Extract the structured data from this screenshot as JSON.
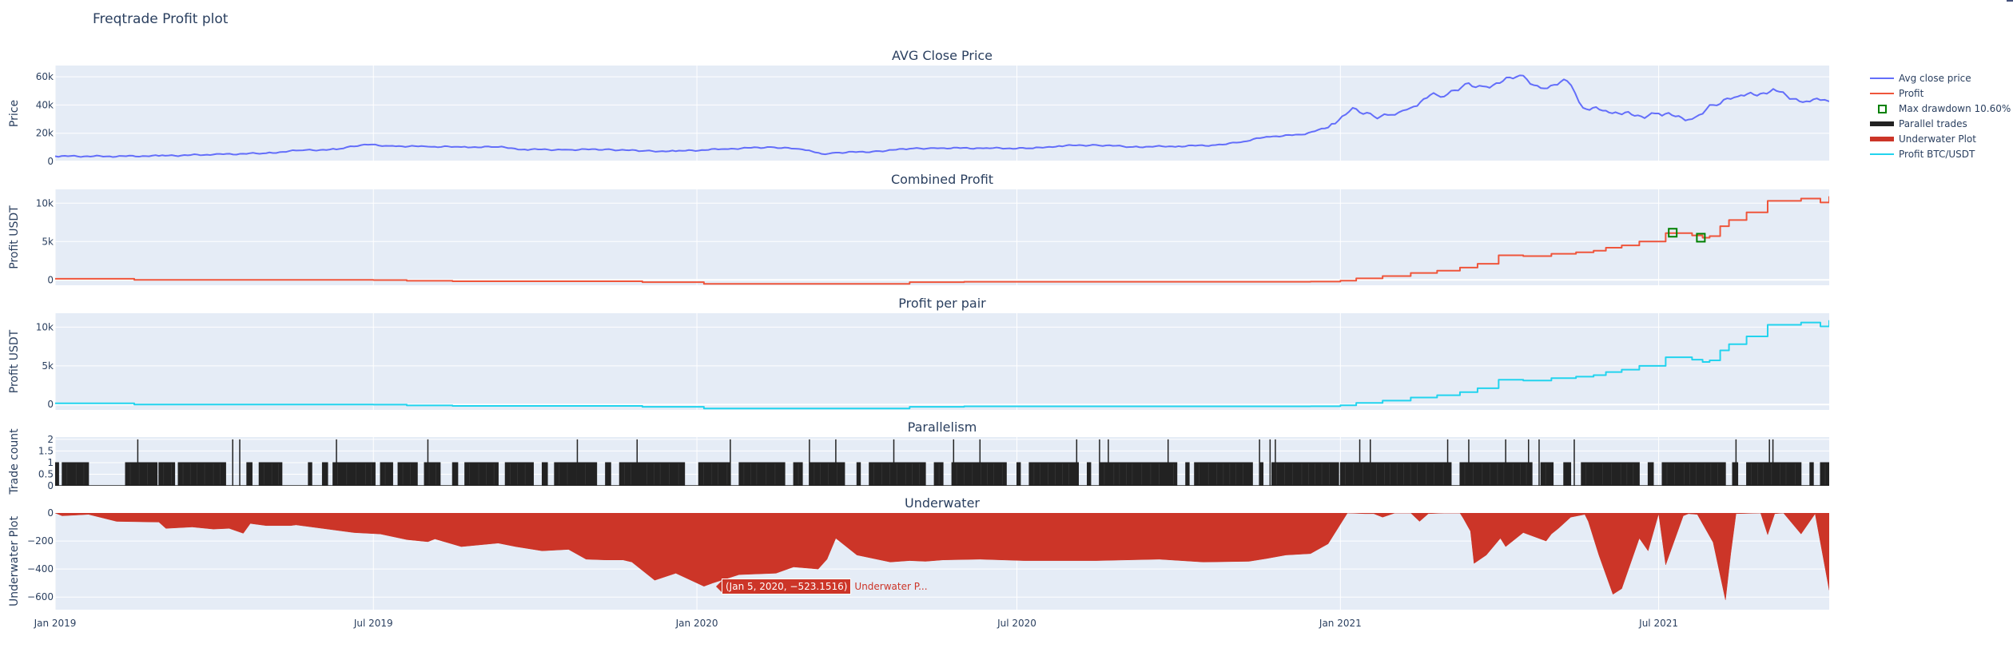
{
  "title": "Freqtrade Profit plot",
  "modebar": {
    "icons": [
      "camera-icon",
      "zoom-icon",
      "pan-icon",
      "box-select-icon",
      "lasso-icon",
      "zoom-in-icon",
      "zoom-out-icon",
      "autoscale-icon",
      "reset-axes-icon",
      "plotly-logo-icon"
    ]
  },
  "legend": {
    "items": [
      {
        "label": "Avg close price",
        "type": "line",
        "color": "#636efa"
      },
      {
        "label": "Profit",
        "type": "line",
        "color": "#ef553b"
      },
      {
        "label": "Max drawdown 10.60%",
        "type": "marker",
        "color": "#008000"
      },
      {
        "label": "Parallel trades",
        "type": "thick",
        "color": "#222222"
      },
      {
        "label": "Underwater Plot",
        "type": "thick",
        "color": "#cc3528"
      },
      {
        "label": "Profit BTC/USDT",
        "type": "line",
        "color": "#22d3ee"
      }
    ]
  },
  "tooltip": {
    "value": "(Jan 5, 2020, −523.1516)",
    "series": "Underwater P..."
  },
  "colors": {
    "plot_bg": "#e5ecf6",
    "grid": "#ffffff",
    "text": "#2a3f5f"
  },
  "chart_data": [
    {
      "type": "line",
      "title": "AVG Close Price",
      "ylabel": "Price",
      "xlabel": "",
      "ylim": [
        0,
        68000
      ],
      "yticks": [
        {
          "v": 0,
          "label": "0"
        },
        {
          "v": 20000,
          "label": "20k"
        },
        {
          "v": 40000,
          "label": "40k"
        },
        {
          "v": 60000,
          "label": "60k"
        }
      ],
      "series": [
        {
          "name": "Avg close price",
          "color": "#636efa",
          "x": [
            "2019-01-01",
            "2019-02-01",
            "2019-03-01",
            "2019-04-01",
            "2019-05-01",
            "2019-05-20",
            "2019-06-10",
            "2019-06-26",
            "2019-07-10",
            "2019-08-01",
            "2019-08-20",
            "2019-09-10",
            "2019-09-25",
            "2019-10-20",
            "2019-11-10",
            "2019-12-01",
            "2019-12-20",
            "2020-01-15",
            "2020-02-12",
            "2020-03-01",
            "2020-03-12",
            "2020-03-20",
            "2020-04-10",
            "2020-05-01",
            "2020-05-15",
            "2020-06-10",
            "2020-07-10",
            "2020-07-25",
            "2020-08-15",
            "2020-09-05",
            "2020-10-01",
            "2020-10-20",
            "2020-11-05",
            "2020-11-20",
            "2020-12-10",
            "2020-12-25",
            "2021-01-08",
            "2021-01-20",
            "2021-02-01",
            "2021-02-10",
            "2021-02-21",
            "2021-03-01",
            "2021-03-13",
            "2021-03-25",
            "2021-04-13",
            "2021-04-25",
            "2021-05-10",
            "2021-05-19",
            "2021-06-01",
            "2021-06-21",
            "2021-07-01",
            "2021-07-20",
            "2021-08-01",
            "2021-08-15",
            "2021-09-06",
            "2021-09-21",
            "2021-10-01",
            "2021-10-06"
          ],
          "values": [
            3700,
            3600,
            3900,
            4900,
            5800,
            7800,
            8500,
            12000,
            11000,
            10500,
            10200,
            10200,
            8500,
            8300,
            8600,
            7400,
            7200,
            8700,
            10200,
            8500,
            5300,
            6200,
            7000,
            9000,
            9500,
            9400,
            9200,
            11000,
            11700,
            10300,
            10800,
            11500,
            13500,
            17500,
            19000,
            24000,
            38000,
            32000,
            33000,
            38000,
            47000,
            46000,
            55000,
            53000,
            61000,
            52000,
            57000,
            38000,
            36000,
            32000,
            34000,
            30000,
            40000,
            46000,
            50000,
            42000,
            43500,
            42500
          ]
        }
      ]
    },
    {
      "type": "line",
      "title": "Combined Profit",
      "ylabel": "Profit USDT",
      "xlabel": "",
      "ylim": [
        -700,
        11800
      ],
      "yticks": [
        {
          "v": 0,
          "label": "0"
        },
        {
          "v": 5000,
          "label": "5k"
        },
        {
          "v": 10000,
          "label": "10k"
        }
      ],
      "series": [
        {
          "name": "Profit",
          "color": "#ef553b",
          "shape": "hv",
          "x": [
            "2019-01-01",
            "2019-02-15",
            "2019-07-01",
            "2019-07-20",
            "2019-08-15",
            "2019-12-01",
            "2020-01-05",
            "2020-05-01",
            "2020-06-01",
            "2020-12-15",
            "2021-01-01",
            "2021-01-10",
            "2021-01-25",
            "2021-02-10",
            "2021-02-25",
            "2021-03-10",
            "2021-03-20",
            "2021-04-01",
            "2021-04-15",
            "2021-05-01",
            "2021-05-15",
            "2021-05-25",
            "2021-06-01",
            "2021-06-10",
            "2021-06-20",
            "2021-07-05",
            "2021-07-20",
            "2021-07-26",
            "2021-07-30",
            "2021-08-05",
            "2021-08-10",
            "2021-08-20",
            "2021-09-01",
            "2021-09-20",
            "2021-10-01",
            "2021-10-06"
          ],
          "values": [
            150,
            0,
            -20,
            -120,
            -180,
            -300,
            -520,
            -300,
            -240,
            -220,
            -100,
            200,
            500,
            900,
            1200,
            1600,
            2100,
            3200,
            3100,
            3400,
            3600,
            3800,
            4200,
            4500,
            5000,
            6100,
            5800,
            5500,
            5700,
            7000,
            7800,
            8800,
            10300,
            10600,
            10100,
            10900
          ]
        },
        {
          "name": "Max drawdown 10.60%",
          "color": "#008000",
          "type": "marker",
          "x": [
            "2021-07-09",
            "2021-07-25"
          ],
          "values": [
            6150,
            5500
          ]
        }
      ]
    },
    {
      "type": "line",
      "title": "Profit per pair",
      "ylabel": "Profit USDT",
      "xlabel": "",
      "ylim": [
        -700,
        11800
      ],
      "yticks": [
        {
          "v": 0,
          "label": "0"
        },
        {
          "v": 5000,
          "label": "5k"
        },
        {
          "v": 10000,
          "label": "10k"
        }
      ],
      "series": [
        {
          "name": "Profit BTC/USDT",
          "color": "#22d3ee",
          "shape": "hv",
          "x": [
            "2019-01-01",
            "2019-02-15",
            "2019-07-01",
            "2019-07-20",
            "2019-08-15",
            "2019-12-01",
            "2020-01-05",
            "2020-05-01",
            "2020-06-01",
            "2020-12-15",
            "2021-01-01",
            "2021-01-10",
            "2021-01-25",
            "2021-02-10",
            "2021-02-25",
            "2021-03-10",
            "2021-03-20",
            "2021-04-01",
            "2021-04-15",
            "2021-05-01",
            "2021-05-15",
            "2021-05-25",
            "2021-06-01",
            "2021-06-10",
            "2021-06-20",
            "2021-07-05",
            "2021-07-20",
            "2021-07-26",
            "2021-07-30",
            "2021-08-05",
            "2021-08-10",
            "2021-08-20",
            "2021-09-01",
            "2021-09-20",
            "2021-10-01",
            "2021-10-06"
          ],
          "values": [
            150,
            0,
            -20,
            -120,
            -180,
            -300,
            -520,
            -300,
            -240,
            -220,
            -100,
            200,
            500,
            900,
            1200,
            1600,
            2100,
            3200,
            3100,
            3400,
            3600,
            3800,
            4200,
            4500,
            5000,
            6100,
            5800,
            5500,
            5700,
            7000,
            7800,
            8800,
            10300,
            10600,
            10100,
            10900
          ]
        }
      ]
    },
    {
      "type": "bar",
      "title": "Parallelism",
      "ylabel": "Trade count",
      "xlabel": "",
      "ylim": [
        0,
        2.1
      ],
      "yticks": [
        {
          "v": 0,
          "label": "0"
        },
        {
          "v": 0.5,
          "label": "0.5"
        },
        {
          "v": 1,
          "label": "1"
        },
        {
          "v": 1.5,
          "label": "1.5"
        },
        {
          "v": 2,
          "label": "2"
        }
      ],
      "series": [
        {
          "name": "Parallel trades",
          "color": "#222222",
          "note": "Step series of open trade count (0, 1, or 2) over time; dense blocks of 1 with occasional spikes to 2",
          "blocks_of_1": [
            [
              "2019-01-01",
              "2019-01-03"
            ],
            [
              "2019-01-05",
              "2019-01-20"
            ],
            [
              "2019-02-10",
              "2019-02-28"
            ],
            [
              "2019-03-01",
              "2019-03-10"
            ],
            [
              "2019-03-12",
              "2019-04-08"
            ],
            [
              "2019-04-20",
              "2019-04-23"
            ],
            [
              "2019-04-27",
              "2019-05-10"
            ],
            [
              "2019-05-25",
              "2019-05-27"
            ],
            [
              "2019-06-02",
              "2019-06-05"
            ],
            [
              "2019-06-08",
              "2019-07-02"
            ],
            [
              "2019-07-05",
              "2019-07-12"
            ],
            [
              "2019-07-15",
              "2019-07-26"
            ],
            [
              "2019-07-30",
              "2019-08-08"
            ],
            [
              "2019-08-15",
              "2019-08-18"
            ],
            [
              "2019-08-22",
              "2019-09-10"
            ],
            [
              "2019-09-14",
              "2019-09-30"
            ],
            [
              "2019-10-05",
              "2019-10-08"
            ],
            [
              "2019-10-12",
              "2019-11-05"
            ],
            [
              "2019-11-10",
              "2019-11-13"
            ],
            [
              "2019-11-18",
              "2019-12-25"
            ],
            [
              "2020-01-02",
              "2020-01-20"
            ],
            [
              "2020-01-25",
              "2020-02-20"
            ],
            [
              "2020-02-25",
              "2020-03-01"
            ],
            [
              "2020-03-05",
              "2020-03-25"
            ],
            [
              "2020-04-01",
              "2020-04-03"
            ],
            [
              "2020-04-08",
              "2020-05-10"
            ],
            [
              "2020-05-15",
              "2020-05-20"
            ],
            [
              "2020-05-25",
              "2020-06-25"
            ],
            [
              "2020-07-01",
              "2020-07-03"
            ],
            [
              "2020-07-08",
              "2020-08-05"
            ],
            [
              "2020-08-10",
              "2020-08-12"
            ],
            [
              "2020-08-17",
              "2020-09-30"
            ],
            [
              "2020-10-05",
              "2020-10-07"
            ],
            [
              "2020-10-10",
              "2020-11-12"
            ],
            [
              "2020-11-16",
              "2020-11-18"
            ],
            [
              "2020-11-23",
              "2020-12-31"
            ],
            [
              "2021-01-01",
              "2021-03-05"
            ],
            [
              "2021-03-10",
              "2021-04-20"
            ],
            [
              "2021-04-25",
              "2021-05-02"
            ],
            [
              "2021-05-08",
              "2021-05-12"
            ],
            [
              "2021-05-18",
              "2021-06-20"
            ],
            [
              "2021-06-25",
              "2021-06-28"
            ],
            [
              "2021-07-03",
              "2021-08-08"
            ],
            [
              "2021-08-12",
              "2021-08-15"
            ],
            [
              "2021-08-20",
              "2021-09-20"
            ],
            [
              "2021-09-25",
              "2021-09-27"
            ],
            [
              "2021-10-01",
              "2021-10-06"
            ]
          ],
          "spikes_to_2": [
            "2019-02-17",
            "2019-04-12",
            "2019-04-16",
            "2019-06-10",
            "2019-08-01",
            "2019-10-25",
            "2019-11-28",
            "2020-01-20",
            "2020-03-05",
            "2020-03-20",
            "2020-04-22",
            "2020-05-26",
            "2020-06-10",
            "2020-08-04",
            "2020-08-17",
            "2020-08-22",
            "2020-09-25",
            "2020-11-16",
            "2020-11-22",
            "2020-11-25",
            "2021-01-12",
            "2021-01-18",
            "2021-03-03",
            "2021-03-15",
            "2021-04-05",
            "2021-04-18",
            "2021-04-24",
            "2021-05-14",
            "2021-08-14",
            "2021-09-02",
            "2021-09-04"
          ]
        }
      ]
    },
    {
      "type": "area",
      "title": "Underwater",
      "ylabel": "Underwater Plot",
      "xlabel": "",
      "ylim": [
        -690,
        0
      ],
      "yticks": [
        {
          "v": 0,
          "label": "0"
        },
        {
          "v": -200,
          "label": "−200"
        },
        {
          "v": -400,
          "label": "−400"
        },
        {
          "v": -600,
          "label": "−600"
        }
      ],
      "xticks": [
        "Jan 2019",
        "Jul 2019",
        "Jan 2020",
        "Jul 2020",
        "Jan 2021",
        "Jul 2021"
      ],
      "series": [
        {
          "name": "Underwater Plot",
          "color": "#cc3528",
          "x": [
            "2019-01-01",
            "2019-01-05",
            "2019-01-20",
            "2019-02-05",
            "2019-03-01",
            "2019-03-05",
            "2019-03-20",
            "2019-04-01",
            "2019-04-10",
            "2019-04-18",
            "2019-04-22",
            "2019-05-01",
            "2019-05-15",
            "2019-05-18",
            "2019-06-20",
            "2019-07-05",
            "2019-07-20",
            "2019-08-01",
            "2019-08-05",
            "2019-08-20",
            "2019-09-10",
            "2019-09-20",
            "2019-10-05",
            "2019-10-20",
            "2019-10-30",
            "2019-11-10",
            "2019-11-20",
            "2019-11-25",
            "2019-12-08",
            "2019-12-20",
            "2020-01-05",
            "2020-01-10",
            "2020-01-25",
            "2020-02-15",
            "2020-02-25",
            "2020-03-10",
            "2020-03-15",
            "2020-03-20",
            "2020-04-01",
            "2020-04-20",
            "2020-05-01",
            "2020-05-10",
            "2020-05-20",
            "2020-06-10",
            "2020-07-05",
            "2020-08-15",
            "2020-09-20",
            "2020-10-15",
            "2020-11-10",
            "2020-11-20",
            "2020-12-01",
            "2020-12-15",
            "2020-12-25",
            "2021-01-05",
            "2021-01-15",
            "2021-01-20",
            "2021-01-25",
            "2021-02-01",
            "2021-02-10",
            "2021-02-15",
            "2021-02-20",
            "2021-03-01",
            "2021-03-10",
            "2021-03-12",
            "2021-03-16",
            "2021-03-18",
            "2021-03-25",
            "2021-04-02",
            "2021-04-05",
            "2021-04-15",
            "2021-04-28",
            "2021-05-01",
            "2021-05-05",
            "2021-05-12",
            "2021-05-20",
            "2021-05-22",
            "2021-05-28",
            "2021-06-05",
            "2021-06-10",
            "2021-06-20",
            "2021-06-25",
            "2021-07-01",
            "2021-07-05",
            "2021-07-15",
            "2021-07-18",
            "2021-07-23",
            "2021-08-01",
            "2021-08-08",
            "2021-08-11",
            "2021-08-14",
            "2021-08-28",
            "2021-09-01",
            "2021-09-05",
            "2021-09-10",
            "2021-09-20",
            "2021-09-28",
            "2021-10-06"
          ],
          "values": [
            0,
            -20,
            -10,
            -60,
            -65,
            -110,
            -100,
            -115,
            -110,
            -145,
            -75,
            -90,
            -90,
            -85,
            -140,
            -150,
            -190,
            -205,
            -185,
            -240,
            -215,
            -240,
            -270,
            -260,
            -330,
            -335,
            -335,
            -350,
            -480,
            -430,
            -523,
            -500,
            -440,
            -430,
            -385,
            -400,
            -330,
            -180,
            -300,
            -350,
            -340,
            -345,
            -335,
            -330,
            -340,
            -340,
            -330,
            -350,
            -345,
            -325,
            -300,
            -290,
            -220,
            0,
            -5,
            -5,
            -30,
            0,
            0,
            -60,
            -5,
            0,
            0,
            -40,
            -130,
            -360,
            -300,
            -180,
            -240,
            -140,
            -200,
            -150,
            -110,
            -30,
            -10,
            -60,
            -300,
            -580,
            -540,
            -180,
            -270,
            -5,
            -370,
            -20,
            -5,
            -10,
            -210,
            -620,
            -290,
            -5,
            0,
            -155,
            -5,
            0,
            -150,
            -5,
            -550
          ]
        }
      ]
    }
  ]
}
